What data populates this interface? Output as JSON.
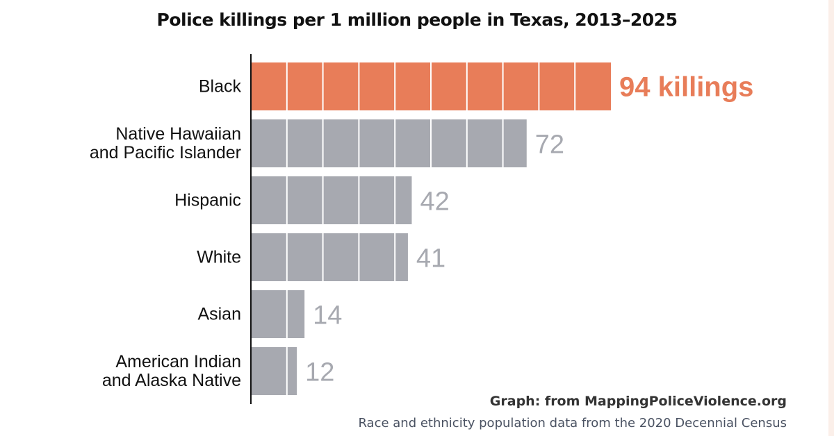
{
  "chart_data": {
    "type": "bar",
    "orientation": "horizontal",
    "title": "Police killings per 1 million people in Texas, 2013–2025",
    "categories": [
      [
        "Black"
      ],
      [
        "Native Hawaiian",
        "and Pacific Islander"
      ],
      [
        "Hispanic"
      ],
      [
        "White"
      ],
      [
        "Asian"
      ],
      [
        "American Indian",
        "and Alaska Native"
      ]
    ],
    "values": [
      94,
      72,
      42,
      41,
      14,
      12
    ],
    "data_labels": [
      "94 killings",
      "72",
      "42",
      "41",
      "14",
      "12"
    ],
    "highlight_index": 0,
    "xlim": [
      0,
      94
    ],
    "colors": {
      "highlight": "#e87d59",
      "default": "#a7a9b0",
      "label_default": "#a7a9b0"
    }
  },
  "footer": {
    "source": "Graph: from MappingPoliceViolence.org",
    "note": "Race and ethnicity population data from the 2020 Decennial Census"
  }
}
